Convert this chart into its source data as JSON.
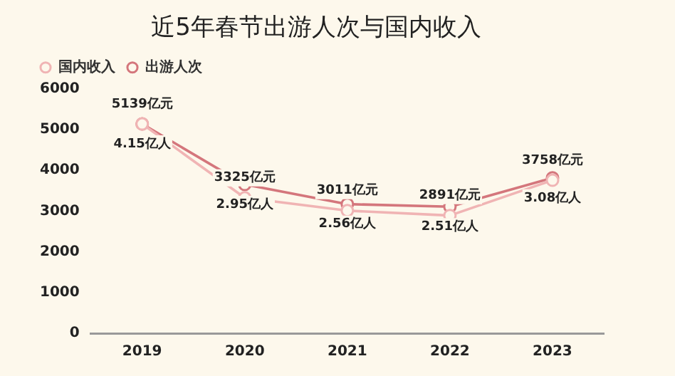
{
  "chart_data": {
    "type": "line",
    "title": "近5年春节出游人次与国内收入",
    "categories": [
      "2019",
      "2020",
      "2021",
      "2022",
      "2023"
    ],
    "series": [
      {
        "name": "国内收入",
        "color": "#f0b4b4",
        "values": [
          5139,
          3325,
          3011,
          2891,
          3758
        ],
        "value_labels": [
          "5139亿元",
          "3325亿元",
          "3011亿元",
          "2891亿元",
          "3758亿元"
        ]
      },
      {
        "name": "出游人次",
        "color": "#d4767c",
        "axis": "y2",
        "values": [
          4.15,
          2.95,
          2.56,
          2.51,
          3.08
        ],
        "value_labels": [
          "4.15亿人",
          "2.95亿人",
          "2.56亿人",
          "2.51亿人",
          "3.08亿人"
        ]
      }
    ],
    "ylim": [
      0,
      6000
    ],
    "yticks": [
      0,
      1000,
      2000,
      3000,
      4000,
      5000,
      6000
    ],
    "grid": false,
    "legend": "top left",
    "marker": "circle",
    "line_style": "solid"
  }
}
